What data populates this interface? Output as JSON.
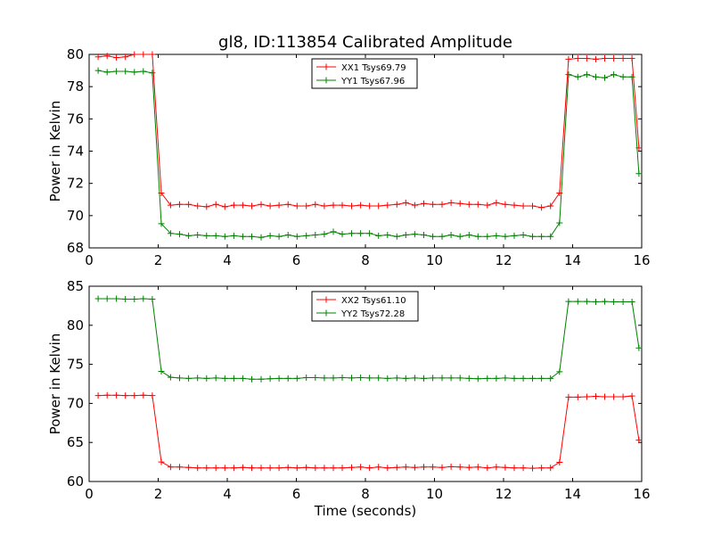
{
  "title": "gl8, ID:113854 Calibrated Amplitude",
  "chart_data": [
    {
      "type": "line",
      "xlabel": "",
      "ylabel": "Power in Kelvin",
      "xlim": [
        0,
        16
      ],
      "ylim": [
        68,
        80
      ],
      "xticks": [
        "0",
        "2",
        "4",
        "6",
        "8",
        "10",
        "12",
        "14",
        "16"
      ],
      "yticks": [
        "68",
        "70",
        "72",
        "74",
        "76",
        "78",
        "80"
      ],
      "legend_position": "top-center",
      "grid": false,
      "x": [
        0.26,
        0.52,
        0.79,
        1.05,
        1.31,
        1.57,
        1.83,
        2.09,
        2.36,
        2.62,
        2.88,
        3.14,
        3.4,
        3.67,
        3.93,
        4.19,
        4.45,
        4.71,
        4.98,
        5.24,
        5.5,
        5.76,
        6.02,
        6.29,
        6.55,
        6.81,
        7.07,
        7.33,
        7.6,
        7.86,
        8.12,
        8.38,
        8.64,
        8.91,
        9.17,
        9.43,
        9.69,
        9.95,
        10.22,
        10.48,
        10.74,
        11.0,
        11.26,
        11.53,
        11.79,
        12.05,
        12.31,
        12.57,
        12.84,
        13.1,
        13.36,
        13.62,
        13.88,
        14.15,
        14.41,
        14.67,
        14.93,
        15.19,
        15.46,
        15.72,
        15.92
      ],
      "series": [
        {
          "name": "XX1 Tsys69.79",
          "color": "#ff0000",
          "values": [
            79.85,
            79.9,
            79.8,
            79.85,
            80.0,
            80.0,
            80.0,
            71.4,
            70.65,
            70.7,
            70.7,
            70.6,
            70.55,
            70.7,
            70.55,
            70.65,
            70.65,
            70.6,
            70.7,
            70.6,
            70.65,
            70.7,
            70.6,
            70.6,
            70.7,
            70.6,
            70.65,
            70.65,
            70.6,
            70.65,
            70.6,
            70.6,
            70.65,
            70.7,
            70.8,
            70.65,
            70.75,
            70.7,
            70.7,
            70.8,
            70.75,
            70.7,
            70.7,
            70.65,
            70.8,
            70.7,
            70.65,
            70.6,
            70.6,
            70.5,
            70.6,
            71.4,
            79.7,
            79.75,
            79.75,
            79.7,
            79.75,
            79.75,
            79.75,
            79.75,
            74.2
          ]
        },
        {
          "name": "YY1 Tsys67.96",
          "color": "#008000",
          "values": [
            79.0,
            78.9,
            78.95,
            78.95,
            78.9,
            78.95,
            78.85,
            69.5,
            68.9,
            68.85,
            68.75,
            68.8,
            68.75,
            68.75,
            68.7,
            68.75,
            68.7,
            68.7,
            68.65,
            68.75,
            68.7,
            68.8,
            68.7,
            68.75,
            68.8,
            68.85,
            69.0,
            68.85,
            68.9,
            68.9,
            68.9,
            68.75,
            68.8,
            68.7,
            68.8,
            68.85,
            68.8,
            68.7,
            68.7,
            68.8,
            68.7,
            68.8,
            68.7,
            68.7,
            68.75,
            68.7,
            68.75,
            68.8,
            68.7,
            68.7,
            68.7,
            69.55,
            78.75,
            78.6,
            78.75,
            78.6,
            78.55,
            78.75,
            78.6,
            78.6,
            72.6
          ]
        }
      ]
    },
    {
      "type": "line",
      "xlabel": "Time (seconds)",
      "ylabel": "Power in Kelvin",
      "xlim": [
        0,
        16
      ],
      "ylim": [
        60,
        85
      ],
      "xticks": [
        "0",
        "2",
        "4",
        "6",
        "8",
        "10",
        "12",
        "14",
        "16"
      ],
      "yticks": [
        "60",
        "65",
        "70",
        "75",
        "80",
        "85"
      ],
      "legend_position": "top-center",
      "grid": false,
      "x": [
        0.26,
        0.52,
        0.79,
        1.05,
        1.31,
        1.57,
        1.83,
        2.09,
        2.36,
        2.62,
        2.88,
        3.14,
        3.4,
        3.67,
        3.93,
        4.19,
        4.45,
        4.71,
        4.98,
        5.24,
        5.5,
        5.76,
        6.02,
        6.29,
        6.55,
        6.81,
        7.07,
        7.33,
        7.6,
        7.86,
        8.12,
        8.38,
        8.64,
        8.91,
        9.17,
        9.43,
        9.69,
        9.95,
        10.22,
        10.48,
        10.74,
        11.0,
        11.26,
        11.53,
        11.79,
        12.05,
        12.31,
        12.57,
        12.84,
        13.1,
        13.36,
        13.62,
        13.88,
        14.15,
        14.41,
        14.67,
        14.93,
        15.19,
        15.46,
        15.72,
        15.92
      ],
      "series": [
        {
          "name": "XX2 Tsys61.10",
          "color": "#ff0000",
          "values": [
            71.0,
            71.05,
            71.05,
            71.0,
            71.0,
            71.05,
            71.0,
            62.5,
            61.85,
            61.85,
            61.8,
            61.75,
            61.75,
            61.75,
            61.75,
            61.75,
            61.8,
            61.75,
            61.75,
            61.75,
            61.75,
            61.8,
            61.75,
            61.8,
            61.75,
            61.75,
            61.75,
            61.75,
            61.8,
            61.85,
            61.75,
            61.85,
            61.75,
            61.8,
            61.85,
            61.8,
            61.85,
            61.85,
            61.8,
            61.9,
            61.85,
            61.8,
            61.85,
            61.75,
            61.85,
            61.8,
            61.75,
            61.75,
            61.7,
            61.75,
            61.75,
            62.45,
            70.8,
            70.8,
            70.85,
            70.9,
            70.85,
            70.85,
            70.85,
            70.95,
            65.3
          ]
        },
        {
          "name": "YY2 Tsys72.28",
          "color": "#008000",
          "values": [
            83.4,
            83.4,
            83.4,
            83.35,
            83.35,
            83.4,
            83.35,
            74.1,
            73.35,
            73.25,
            73.2,
            73.25,
            73.2,
            73.25,
            73.2,
            73.2,
            73.2,
            73.1,
            73.1,
            73.15,
            73.2,
            73.2,
            73.2,
            73.3,
            73.3,
            73.25,
            73.25,
            73.3,
            73.25,
            73.3,
            73.25,
            73.25,
            73.2,
            73.25,
            73.2,
            73.25,
            73.2,
            73.25,
            73.25,
            73.25,
            73.25,
            73.2,
            73.15,
            73.2,
            73.2,
            73.25,
            73.2,
            73.2,
            73.2,
            73.2,
            73.2,
            74.05,
            83.05,
            83.05,
            83.05,
            83.0,
            83.05,
            83.0,
            83.0,
            83.0,
            77.1
          ]
        }
      ]
    }
  ]
}
